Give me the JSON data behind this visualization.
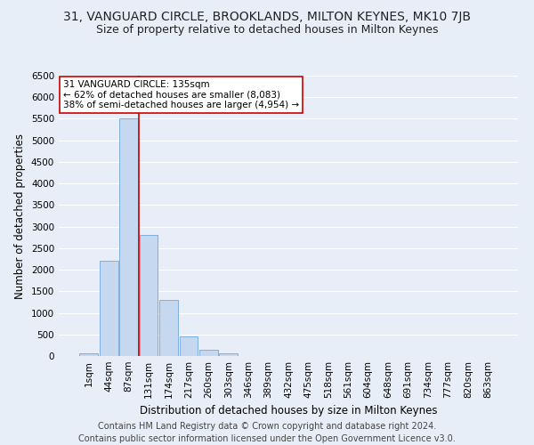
{
  "title_line1": "31, VANGUARD CIRCLE, BROOKLANDS, MILTON KEYNES, MK10 7JB",
  "title_line2": "Size of property relative to detached houses in Milton Keynes",
  "xlabel": "Distribution of detached houses by size in Milton Keynes",
  "ylabel": "Number of detached properties",
  "footnote": "Contains HM Land Registry data © Crown copyright and database right 2024.\nContains public sector information licensed under the Open Government Licence v3.0.",
  "bin_labels": [
    "1sqm",
    "44sqm",
    "87sqm",
    "131sqm",
    "174sqm",
    "217sqm",
    "260sqm",
    "303sqm",
    "346sqm",
    "389sqm",
    "432sqm",
    "475sqm",
    "518sqm",
    "561sqm",
    "604sqm",
    "648sqm",
    "691sqm",
    "734sqm",
    "777sqm",
    "820sqm",
    "863sqm"
  ],
  "bar_values": [
    55,
    2200,
    5500,
    2800,
    1300,
    450,
    150,
    60,
    0,
    0,
    0,
    0,
    0,
    0,
    0,
    0,
    0,
    0,
    0,
    0,
    0
  ],
  "bar_color": "#c5d8ef",
  "bar_edge_color": "#5b9bd5",
  "property_line_x": 3,
  "property_line_color": "#cc0000",
  "annotation_title": "31 VANGUARD CIRCLE: 135sqm",
  "annotation_line2": "← 62% of detached houses are smaller (8,083)",
  "annotation_line3": "38% of semi-detached houses are larger (4,954) →",
  "annotation_box_color": "#cc0000",
  "annotation_fill": "#ffffff",
  "ylim": [
    0,
    6500
  ],
  "yticks": [
    0,
    500,
    1000,
    1500,
    2000,
    2500,
    3000,
    3500,
    4000,
    4500,
    5000,
    5500,
    6000,
    6500
  ],
  "background_color": "#e8eef7",
  "grid_color": "#ffffff",
  "title_fontsize": 10,
  "subtitle_fontsize": 9,
  "axis_label_fontsize": 8.5,
  "tick_fontsize": 7.5,
  "annotation_fontsize": 7.5,
  "footnote_fontsize": 7
}
